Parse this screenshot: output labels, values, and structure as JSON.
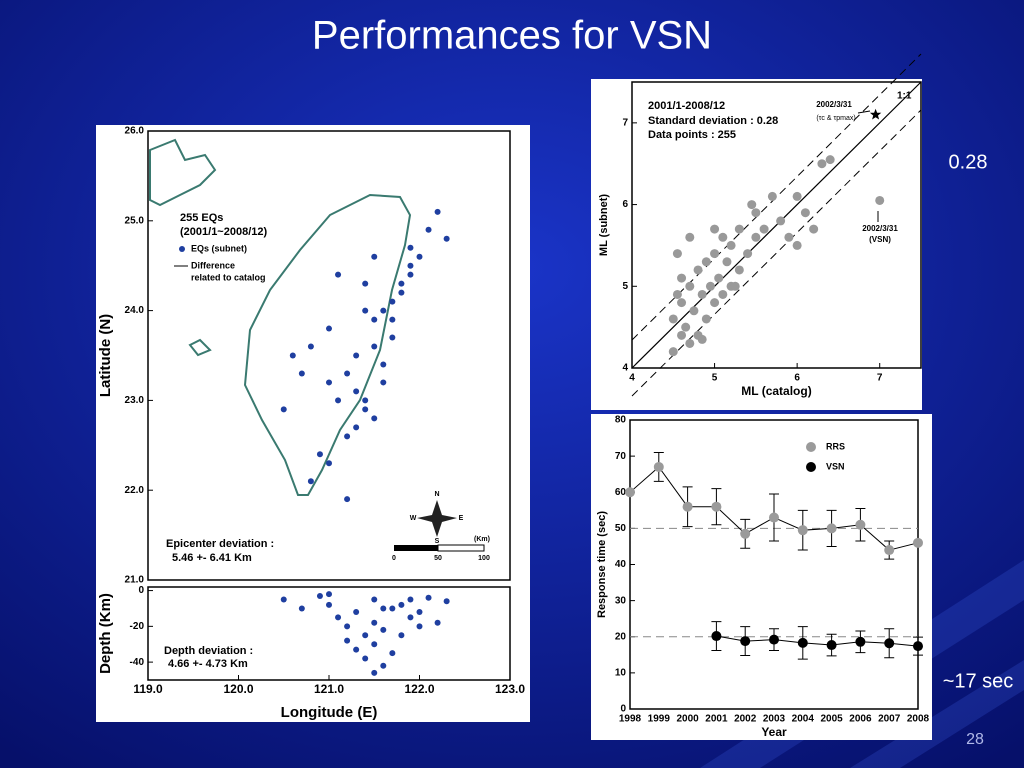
{
  "title": "Performances for VSN",
  "page_number": "28",
  "side_notes": [
    "0.28",
    "~17 sec"
  ],
  "chart_data": [
    {
      "type": "scatter",
      "ylabel": "Latitude (N)",
      "xlim": [
        119,
        123
      ],
      "ylim": [
        21,
        26
      ],
      "yticks": [
        {
          "value": 21,
          "label": "21.0"
        },
        {
          "value": 22,
          "label": "22.0"
        },
        {
          "value": 23,
          "label": "23.0"
        },
        {
          "value": 24,
          "label": "24.0"
        },
        {
          "value": 25,
          "label": "25.0"
        },
        {
          "value": 26,
          "label": "26.0"
        }
      ],
      "legend_title": [
        "255 EQs",
        "(2001/1~2008/12)"
      ],
      "series": [
        {
          "name": "EQs (subnet)",
          "color": "#1f3fa0",
          "x": [
            122.2,
            122.1,
            122.3,
            121.9,
            121.8,
            121.9,
            121.7,
            121.6,
            121.7,
            121.5,
            121.4,
            121.5,
            121.3,
            121.2,
            121.3,
            121.1,
            121.0,
            121.4,
            121.6,
            121.8,
            121.9,
            122.0,
            121.2,
            120.9,
            120.8,
            120.7,
            121.0,
            121.3,
            121.5,
            121.6,
            121.7,
            121.4,
            121.1,
            120.6,
            120.5,
            121.0,
            120.8,
            121.2,
            121.4,
            121.5
          ],
          "y": [
            25.1,
            24.9,
            24.8,
            24.5,
            24.3,
            24.7,
            24.1,
            24.0,
            23.9,
            23.9,
            24.0,
            23.6,
            23.5,
            23.3,
            23.1,
            23.0,
            23.2,
            22.9,
            23.4,
            24.2,
            24.4,
            24.6,
            22.6,
            22.4,
            23.6,
            23.3,
            23.8,
            22.7,
            22.8,
            23.2,
            23.7,
            24.3,
            24.4,
            23.5,
            22.9,
            22.3,
            22.1,
            21.9,
            23.0,
            24.6
          ]
        }
      ],
      "legend_notes": [
        "Difference",
        "related to catalog"
      ],
      "annotations": [
        "Epicenter deviation :",
        "5.46 +- 6.41 Km"
      ],
      "scale_labels": [
        "(Km)",
        "0",
        "50",
        "100"
      ],
      "compass": [
        "N",
        "W",
        "E",
        "S"
      ]
    },
    {
      "type": "scatter",
      "xlabel": "Longitude (E)",
      "ylabel": "Depth (Km)",
      "xlim": [
        119,
        123
      ],
      "ylim": [
        -50,
        2
      ],
      "xticks": [
        {
          "value": 119,
          "label": "119.0"
        },
        {
          "value": 120,
          "label": "120.0"
        },
        {
          "value": 121,
          "label": "121.0"
        },
        {
          "value": 122,
          "label": "122.0"
        },
        {
          "value": 123,
          "label": "123.0"
        }
      ],
      "yticks": [
        0,
        -20,
        -40
      ],
      "series": [
        {
          "color": "#1f3fa0",
          "x": [
            120.5,
            120.7,
            120.9,
            121.0,
            121.1,
            121.2,
            121.3,
            121.4,
            121.5,
            121.5,
            121.6,
            121.7,
            121.7,
            121.8,
            121.9,
            122.0,
            122.1,
            122.2,
            122.3,
            121.4,
            121.6,
            121.2,
            121.0,
            121.8,
            121.5,
            121.3,
            122.0,
            121.9,
            121.6,
            121.5
          ],
          "y": [
            -5,
            -10,
            -3,
            -8,
            -15,
            -20,
            -12,
            -25,
            -18,
            -30,
            -22,
            -10,
            -35,
            -8,
            -5,
            -12,
            -4,
            -18,
            -6,
            -38,
            -42,
            -28,
            -2,
            -25,
            -46,
            -33,
            -20,
            -15,
            -10,
            -5
          ]
        }
      ],
      "annotations": [
        "Depth deviation :",
        "4.66 +- 4.73 Km"
      ]
    },
    {
      "type": "scatter",
      "xlabel": "ML (catalog)",
      "ylabel": "ML (subnet)",
      "xlim": [
        4,
        7.5
      ],
      "ylim": [
        4,
        7.5
      ],
      "xticks": [
        4,
        5,
        6,
        7
      ],
      "yticks": [
        4,
        5,
        6,
        7
      ],
      "series": [
        {
          "color": "#999999",
          "x": [
            4.5,
            4.5,
            4.55,
            4.6,
            4.6,
            4.6,
            4.65,
            4.7,
            4.7,
            4.75,
            4.8,
            4.8,
            4.85,
            4.9,
            4.9,
            4.95,
            5.0,
            5.0,
            5.05,
            5.1,
            5.1,
            5.15,
            5.2,
            5.2,
            5.3,
            5.3,
            5.4,
            5.5,
            5.5,
            5.6,
            5.7,
            5.8,
            5.9,
            6.0,
            6.0,
            6.1,
            6.2,
            6.3,
            6.4,
            4.55,
            4.7,
            4.85,
            5.0,
            5.25,
            5.45,
            7.0
          ],
          "y": [
            4.2,
            4.6,
            4.9,
            4.4,
            4.8,
            5.1,
            4.5,
            4.3,
            5.0,
            4.7,
            4.4,
            5.2,
            4.9,
            4.6,
            5.3,
            5.0,
            4.8,
            5.4,
            5.1,
            5.6,
            4.9,
            5.3,
            5.0,
            5.5,
            5.2,
            5.7,
            5.4,
            5.6,
            5.9,
            5.7,
            6.1,
            5.8,
            5.6,
            6.1,
            5.5,
            5.9,
            5.7,
            6.5,
            6.55,
            5.4,
            5.6,
            4.35,
            5.7,
            5.0,
            6.0,
            6.05
          ]
        },
        {
          "color": "#000000",
          "marker": "star",
          "x": [
            6.95
          ],
          "y": [
            7.1
          ]
        }
      ],
      "annotations": [
        "2001/1-2008/12",
        "Standard deviation : 0.28",
        "Data points : 255",
        "1:1",
        "2002/3/31",
        "(τc & τpmax)",
        "2002/3/31",
        "(VSN)"
      ]
    },
    {
      "type": "line",
      "xlabel": "Year",
      "ylabel": "Response time (sec)",
      "categories": [
        "1998",
        "1999",
        "2000",
        "2001",
        "2002",
        "2003",
        "2004",
        "2005",
        "2006",
        "2007",
        "2008"
      ],
      "ylim": [
        0,
        80
      ],
      "yticks": [
        0,
        10,
        20,
        30,
        40,
        50,
        60,
        70,
        80
      ],
      "hlines": [
        50,
        20
      ],
      "series": [
        {
          "name": "RRS",
          "color": "#9a9a9a",
          "values": [
            60,
            67,
            56,
            56,
            48.5,
            53,
            49.5,
            50,
            51,
            44,
            46
          ],
          "errors": [
            null,
            4,
            5.5,
            5,
            4,
            6.5,
            5.5,
            5,
            4.5,
            2.5,
            null
          ]
        },
        {
          "name": "VSN",
          "color": "#000000",
          "values": [
            null,
            null,
            null,
            20.2,
            18.8,
            19.2,
            18.3,
            17.7,
            18.6,
            18.2,
            17.4
          ],
          "errors": [
            null,
            null,
            null,
            4,
            4,
            3,
            4.5,
            3,
            3,
            4,
            2.5
          ]
        }
      ]
    }
  ]
}
